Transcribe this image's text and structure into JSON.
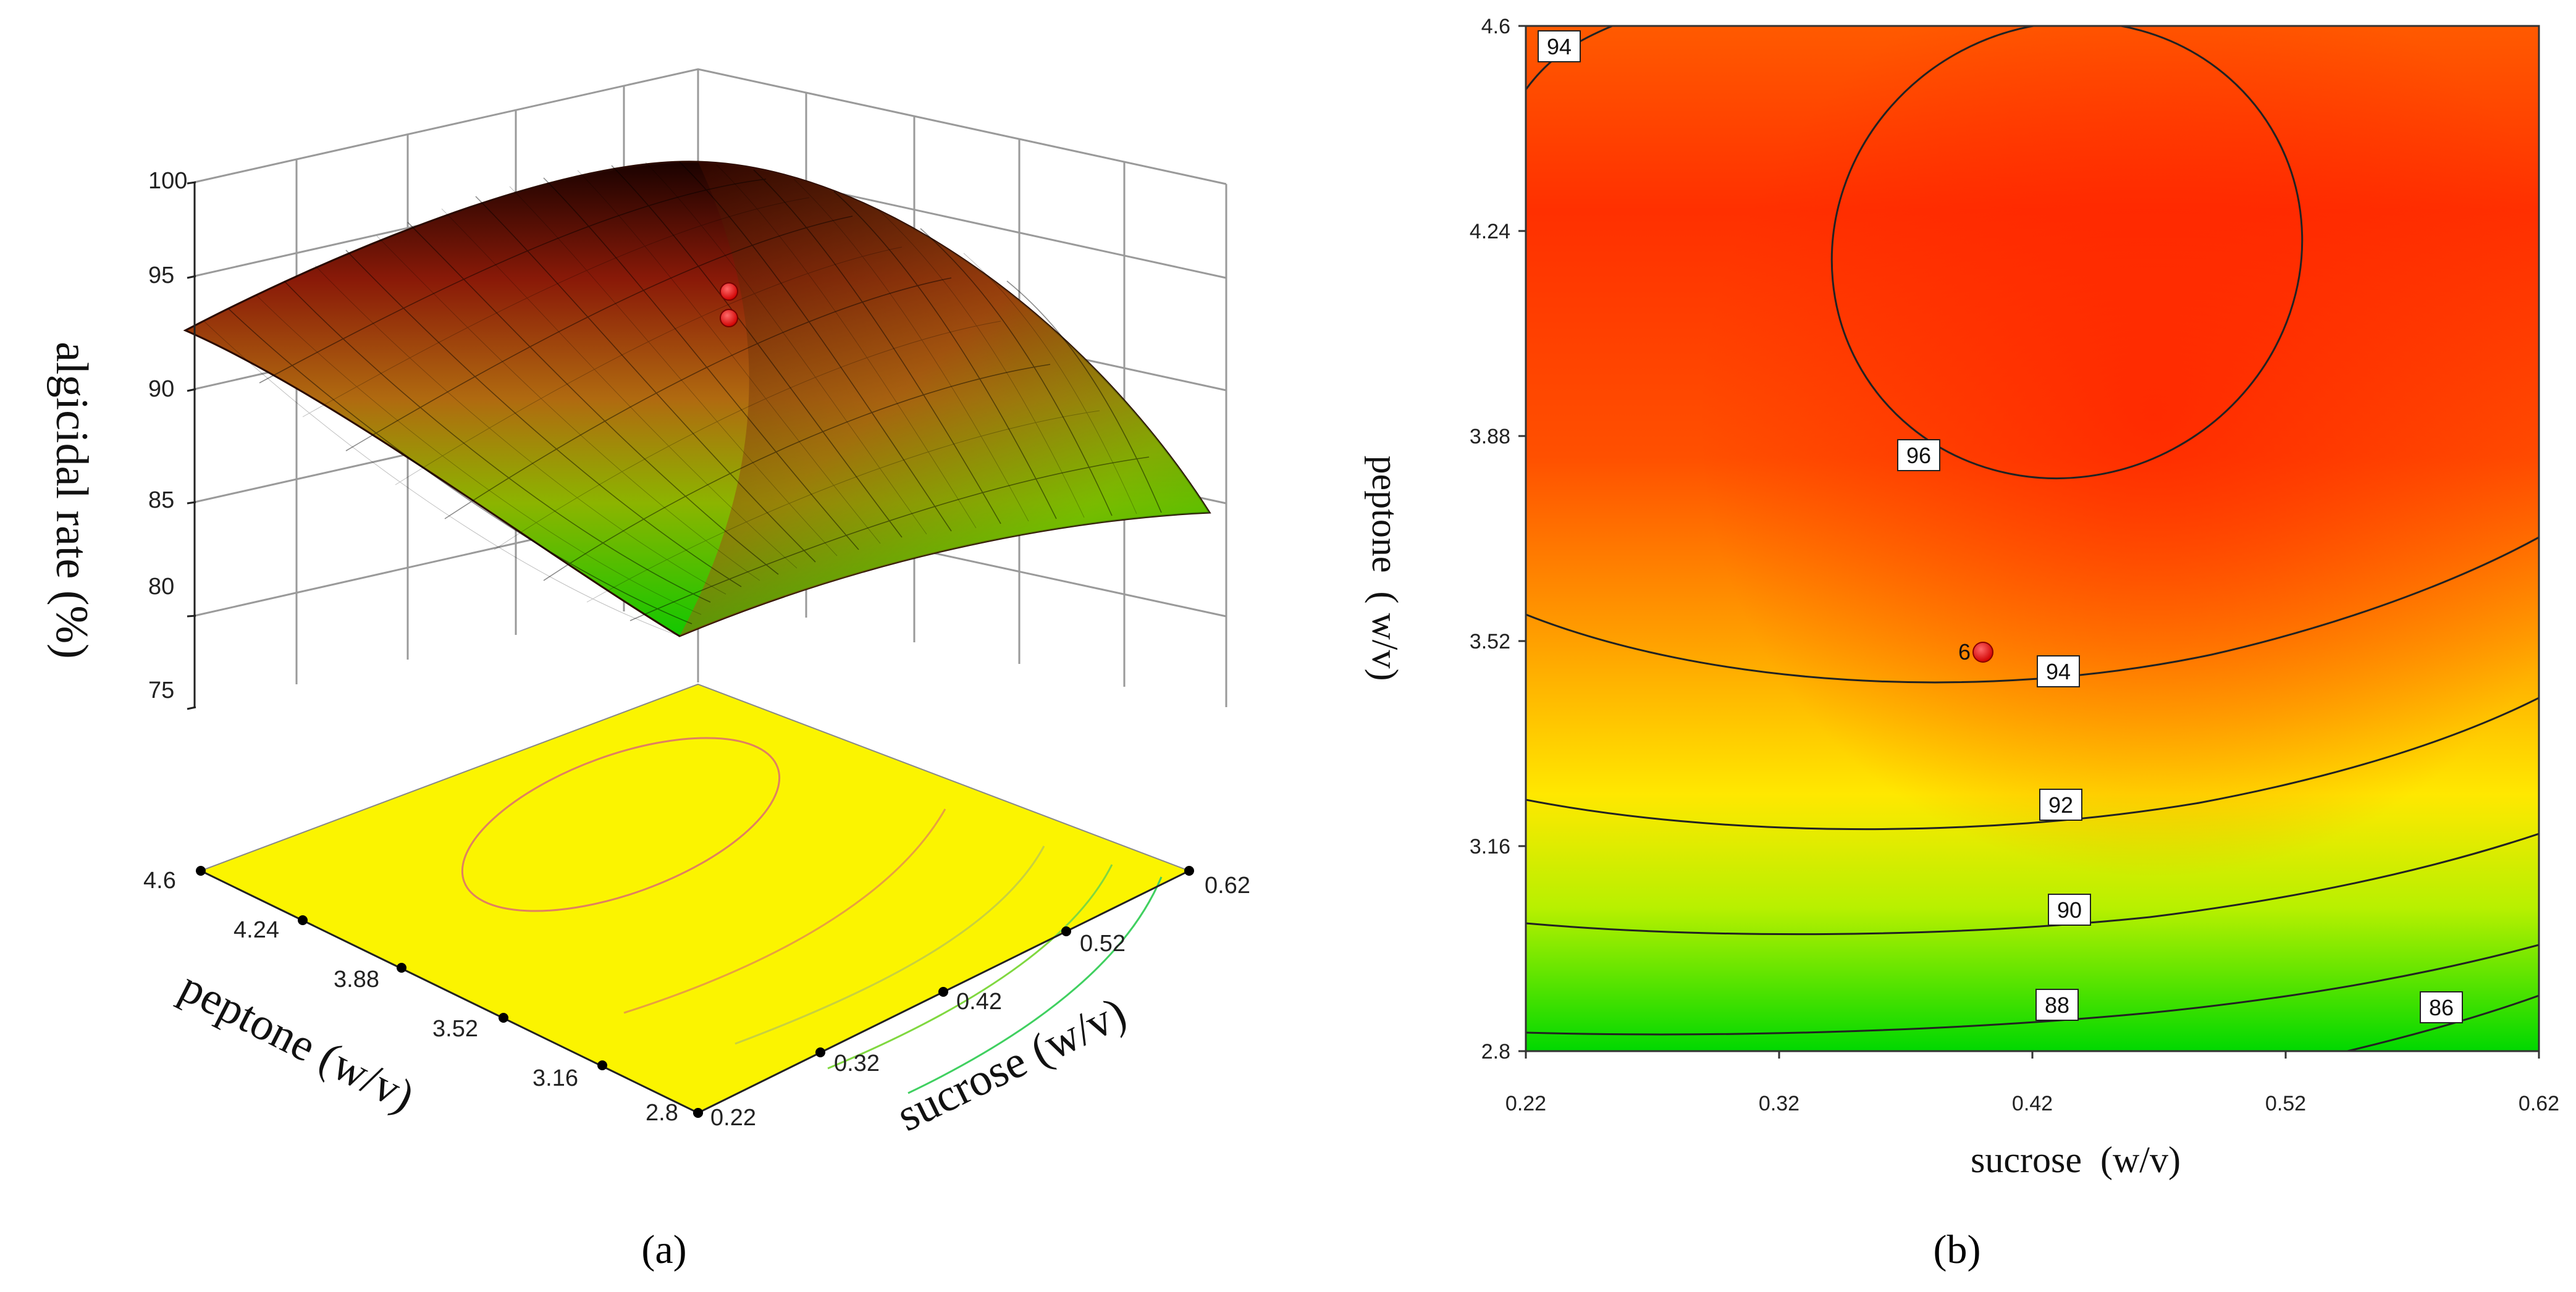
{
  "chart_data": [
    {
      "type": "surface",
      "panel_label": "(a)",
      "zlabel": "algicidal rate (%)",
      "xlabel": "sucrose (w/v)",
      "ylabel": "peptone (w/v)",
      "z_ticks": [
        "100",
        "95",
        "90",
        "85",
        "80",
        "75"
      ],
      "z_range": [
        75,
        100
      ],
      "x_ticks": [
        "0.22",
        "0.32",
        "0.42",
        "0.52",
        "0.62"
      ],
      "y_ticks": [
        "2.8",
        "3.16",
        "3.52",
        "3.88",
        "4.24",
        "4.6"
      ],
      "x_range": [
        0.22,
        0.62
      ],
      "y_range": [
        2.8,
        4.6
      ],
      "design_points": [
        {
          "x": 0.4,
          "y": 3.52,
          "z": 97.0
        },
        {
          "x": 0.4,
          "y": 3.52,
          "z": 95.8
        }
      ],
      "colormap": [
        "#00c800",
        "#e8e800",
        "#ff8000",
        "#d01000",
        "#1a0000"
      ],
      "floor_color": "#fbf400"
    },
    {
      "type": "contour",
      "panel_label": "(b)",
      "xlabel": "sucrose  (w/v)",
      "ylabel": "peptone  ( w/v)",
      "x_ticks": [
        "0.22",
        "0.32",
        "0.42",
        "0.52",
        "0.62"
      ],
      "y_ticks": [
        "2.8",
        "3.16",
        "3.52",
        "3.88",
        "4.24",
        "4.6"
      ],
      "x_range": [
        0.22,
        0.62
      ],
      "y_range": [
        2.8,
        4.6
      ],
      "contour_levels": [
        {
          "label": "86",
          "value": 86
        },
        {
          "label": "88",
          "value": 88
        },
        {
          "label": "90",
          "value": 90
        },
        {
          "label": "92",
          "value": 92
        },
        {
          "label": "94",
          "value": 94
        },
        {
          "label": "94",
          "value": 94
        },
        {
          "label": "96",
          "value": 96
        }
      ],
      "design_point": {
        "label": "6",
        "x": 0.4,
        "y": 3.52
      },
      "colormap": [
        "#00d800",
        "#e8f000",
        "#ffa000",
        "#ff5000",
        "#ff2800"
      ]
    }
  ]
}
